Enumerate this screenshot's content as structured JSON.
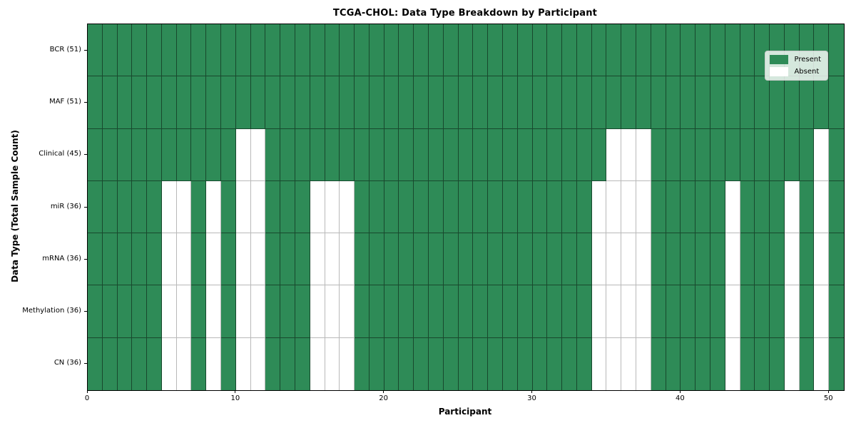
{
  "chart_data": {
    "type": "heatmap",
    "title": "TCGA-CHOL: Data Type Breakdown by Participant",
    "xlabel": "Participant",
    "ylabel": "Data Type (Total Sample Count)",
    "x_ticks": [
      0,
      10,
      20,
      30,
      40,
      50
    ],
    "x_range": [
      0,
      51
    ],
    "n_participants": 51,
    "grid": true,
    "present_color": "#2e8b57",
    "absent_color": "#ffffff",
    "legend": {
      "position": "upper right",
      "entries": [
        {
          "label": "Present",
          "color": "#2e8b57"
        },
        {
          "label": "Absent",
          "color": "#ffffff"
        }
      ]
    },
    "rows": [
      {
        "name": "BCR",
        "label": "BCR (51)",
        "total": 51,
        "absent_participants": []
      },
      {
        "name": "MAF",
        "label": "MAF (51)",
        "total": 51,
        "absent_participants": []
      },
      {
        "name": "Clinical",
        "label": "Clinical (45)",
        "total": 45,
        "absent_participants": [
          10,
          11,
          35,
          36,
          37,
          49
        ]
      },
      {
        "name": "miR",
        "label": "miR (36)",
        "total": 36,
        "absent_participants": [
          5,
          6,
          8,
          10,
          11,
          15,
          16,
          17,
          34,
          35,
          36,
          37,
          43,
          47,
          49
        ]
      },
      {
        "name": "mRNA",
        "label": "mRNA (36)",
        "total": 36,
        "absent_participants": [
          5,
          6,
          8,
          10,
          11,
          15,
          16,
          17,
          34,
          35,
          36,
          37,
          43,
          47,
          49
        ]
      },
      {
        "name": "Methylation",
        "label": "Methylation (36)",
        "total": 36,
        "absent_participants": [
          5,
          6,
          8,
          10,
          11,
          15,
          16,
          17,
          34,
          35,
          36,
          37,
          43,
          47,
          49
        ]
      },
      {
        "name": "CN",
        "label": "CN (36)",
        "total": 36,
        "absent_participants": [
          5,
          6,
          8,
          10,
          11,
          15,
          16,
          17,
          34,
          35,
          36,
          37,
          43,
          47,
          49
        ]
      }
    ]
  }
}
